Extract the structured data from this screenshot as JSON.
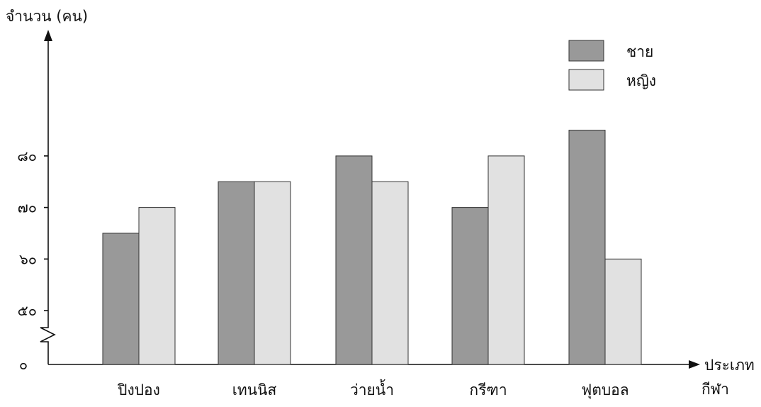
{
  "chart_data": {
    "type": "bar",
    "ylabel": "จำนวน (คน)",
    "xlabel": [
      "ประเภท",
      "กีฬา"
    ],
    "categories": [
      "ปิงปอง",
      "เทนนิส",
      "ว่ายน้ำ",
      "กรีฑา",
      "ฟุตบอล"
    ],
    "series": [
      {
        "name": "ชาย",
        "values": [
          65,
          75,
          80,
          70,
          85
        ],
        "color": "#999999"
      },
      {
        "name": "หญิง",
        "values": [
          70,
          75,
          75,
          80,
          60
        ],
        "color": "#e1e1e1"
      }
    ],
    "yticks": [
      {
        "value": 0,
        "label": "๐"
      },
      {
        "value": 50,
        "label": "๕๐"
      },
      {
        "value": 60,
        "label": "๖๐"
      },
      {
        "value": 70,
        "label": "๗๐"
      },
      {
        "value": 80,
        "label": "๘๐"
      }
    ],
    "y_axis_break": true,
    "ylim": [
      0,
      90
    ],
    "grid": false,
    "legend_position": "top-right"
  }
}
